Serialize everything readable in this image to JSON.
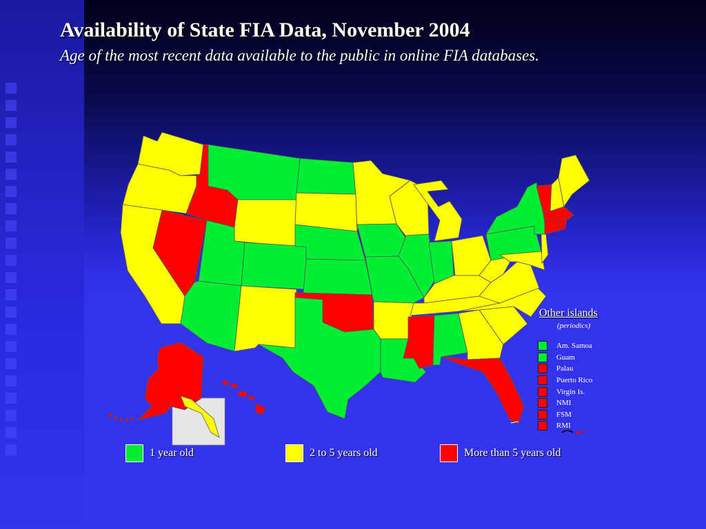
{
  "title": "Availability of State FIA Data, November 2004",
  "subtitle": "Age of the most recent data available to the public in online FIA databases.",
  "colors": {
    "one_year": "#00ee33",
    "two_to_five": "#ffff00",
    "over_five": "#ff0000",
    "background": "#3333ee"
  },
  "legend": [
    {
      "label": "1 year old",
      "color": "#00ee33"
    },
    {
      "label": "2 to 5 years old",
      "color": "#ffff00"
    },
    {
      "label": "More than 5 years old",
      "color": "#ff0000"
    }
  ],
  "other_islands": {
    "title": "Other islands",
    "subtitle": "(periodics)",
    "items": [
      {
        "label": "Am. Samoa",
        "color": "#00ee33"
      },
      {
        "label": "Guam",
        "color": "#00ee33"
      },
      {
        "label": "Palau",
        "color": "#ff0000"
      },
      {
        "label": "Puerto Rico",
        "color": "#ff0000"
      },
      {
        "label": "Virgin Is.",
        "color": "#ff0000"
      },
      {
        "label": "NMI",
        "color": "#ff0000"
      },
      {
        "label": "FSM",
        "color": "#ff0000"
      },
      {
        "label": "RMI",
        "color": "#ff0000"
      }
    ]
  }
}
